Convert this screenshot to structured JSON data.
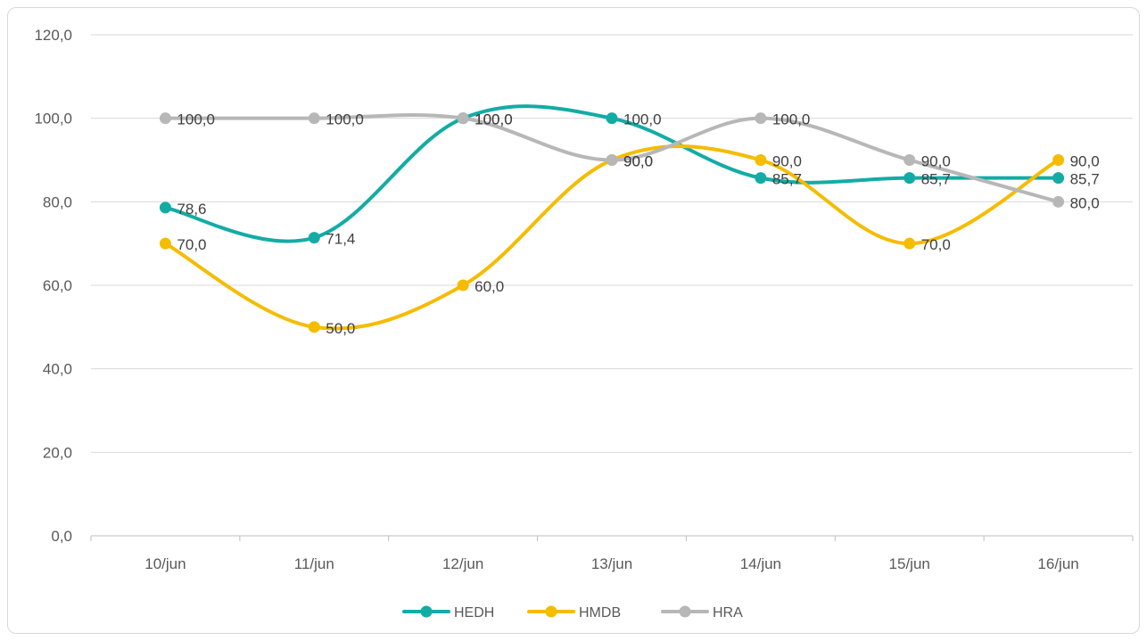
{
  "chart_data": {
    "type": "line",
    "categories": [
      "10/jun",
      "11/jun",
      "12/jun",
      "13/jun",
      "14/jun",
      "15/jun",
      "16/jun"
    ],
    "ylim": [
      0,
      120
    ],
    "yticks": [
      "0,0",
      "20,0",
      "40,0",
      "60,0",
      "80,0",
      "100,0",
      "120,0"
    ],
    "grid": true,
    "legend_position": "bottom",
    "smooth": true,
    "series": [
      {
        "name": "HEDH",
        "color": "#12aca5",
        "values": [
          78.6,
          71.4,
          100.0,
          100.0,
          85.7,
          85.7,
          85.7
        ],
        "labels": [
          "78,6",
          "71,4",
          "100,0",
          "100,0",
          "85,7",
          "85,7",
          "85,7"
        ]
      },
      {
        "name": "HMDB",
        "color": "#f5bc00",
        "values": [
          70.0,
          50.0,
          60.0,
          90.0,
          90.0,
          70.0,
          90.0
        ],
        "labels": [
          "70,0",
          "50,0",
          "60,0",
          "90,0",
          "90,0",
          "70,0",
          "90,0"
        ]
      },
      {
        "name": "HRA",
        "color": "#b7b7b7",
        "values": [
          100.0,
          100.0,
          100.0,
          90.0,
          100.0,
          90.0,
          80.0
        ],
        "labels": [
          "100,0",
          "100,0",
          "100,0",
          "90,0",
          "100,0",
          "90,0",
          "80,0"
        ]
      }
    ]
  }
}
